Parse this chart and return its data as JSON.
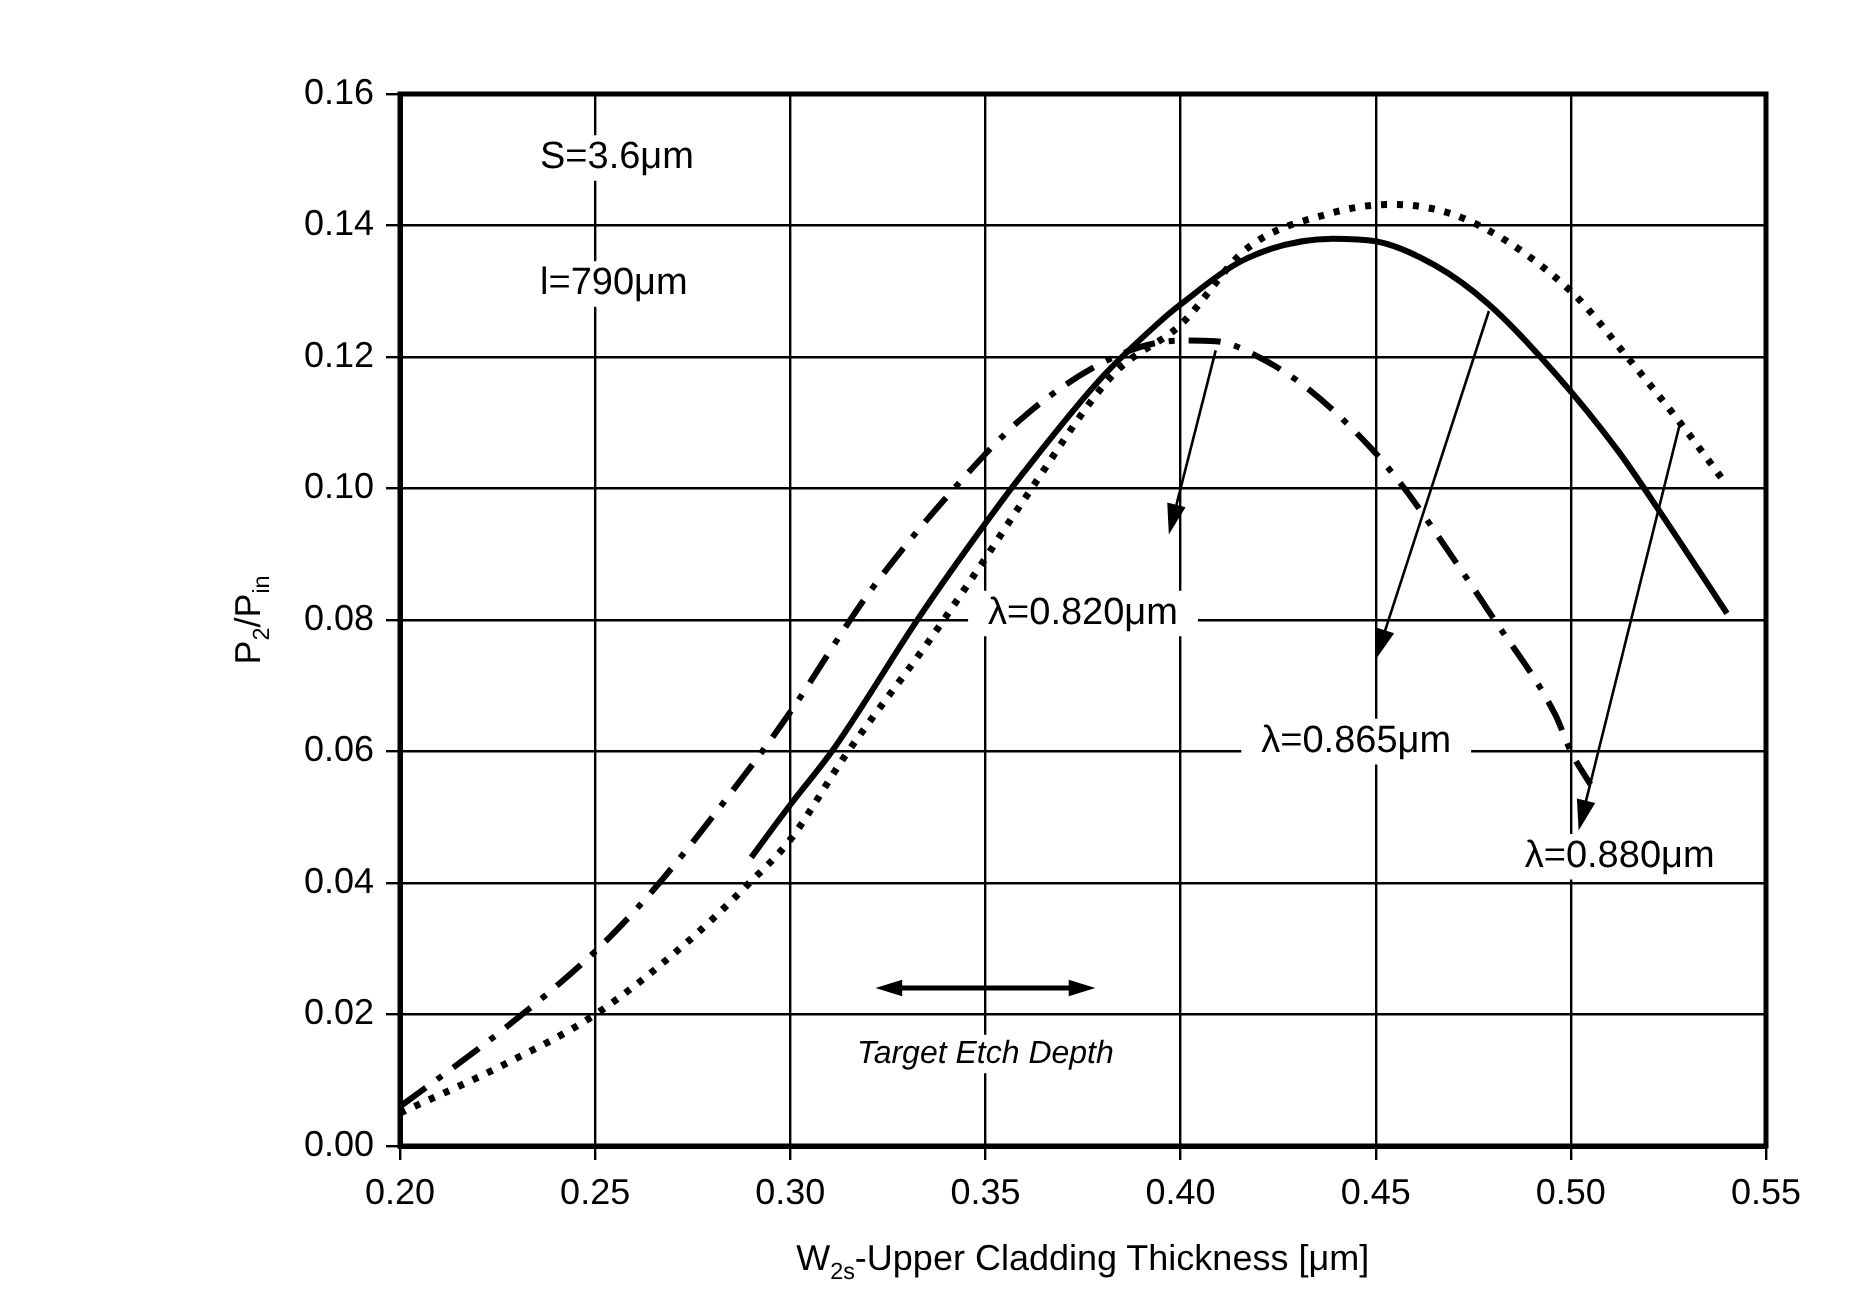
{
  "chart_data": {
    "type": "line",
    "xlabel": "W$_{2s}$-Upper Cladding Thickness [μm]",
    "ylabel": "P$_{2}$/P$_{in}$",
    "xlim": [
      0.2,
      0.55
    ],
    "xticks": [
      {
        "value": 0.2,
        "label": "0.20"
      },
      {
        "value": 0.25,
        "label": "0.25"
      },
      {
        "value": 0.3,
        "label": "0.30"
      },
      {
        "value": 0.35,
        "label": "0.35"
      },
      {
        "value": 0.4,
        "label": "0.40"
      },
      {
        "value": 0.45,
        "label": "0.45"
      },
      {
        "value": 0.5,
        "label": "0.50"
      },
      {
        "value": 0.55,
        "label": "0.55"
      }
    ],
    "ylim": [
      0,
      0.16
    ],
    "yticks": [
      {
        "value": 0,
        "label": "0.00"
      },
      {
        "value": 0.02,
        "label": "0.02"
      },
      {
        "value": 0.04,
        "label": "0.04"
      },
      {
        "value": 0.06,
        "label": "0.06"
      },
      {
        "value": 0.08,
        "label": "0.08"
      },
      {
        "value": 0.1,
        "label": "0.10"
      },
      {
        "value": 0.12,
        "label": "0.12"
      },
      {
        "value": 0.14,
        "label": "0.14"
      },
      {
        "value": 0.16,
        "label": "0.16"
      }
    ],
    "grid": true,
    "legend": false,
    "marker": "none",
    "annotations": [
      "S=3.6μm",
      "l=790μm",
      "Target Etch Depth",
      "λ=0.820μm",
      "λ=0.865μm",
      "λ=0.880μm"
    ],
    "series": [
      {
        "color": "#000000",
        "line_style": "dashed",
        "x": [
          0.2,
          0.226,
          0.25,
          0.265,
          0.289,
          0.3,
          0.32,
          0.342,
          0.36,
          0.383,
          0.4,
          0.409,
          0.42,
          0.433,
          0.449,
          0.458,
          0.468,
          0.48,
          0.496,
          0.5,
          0.505
        ],
        "values": [
          0.006,
          0.0175,
          0.0296,
          0.039,
          0.057,
          0.066,
          0.084,
          0.1,
          0.111,
          0.12,
          0.1225,
          0.1224,
          0.12,
          0.115,
          0.106,
          0.0995,
          0.091,
          0.0804,
          0.0656,
          0.06,
          0.055
        ]
      },
      {
        "color": "#000000",
        "line_style": "solid",
        "x": [
          0.29,
          0.3,
          0.311,
          0.333,
          0.35,
          0.36,
          0.38,
          0.394,
          0.4,
          0.417,
          0.439,
          0.45,
          0.465,
          0.479,
          0.496,
          0.512,
          0.523,
          0.54
        ],
        "values": [
          0.0439,
          0.0519,
          0.0603,
          0.0804,
          0.0947,
          0.1026,
          0.117,
          0.125,
          0.128,
          0.135,
          0.138,
          0.1376,
          0.134,
          0.128,
          0.1175,
          0.1058,
          0.0963,
          0.081
        ]
      },
      {
        "color": "#000000",
        "line_style": "dotted",
        "x": [
          0.2,
          0.226,
          0.25,
          0.273,
          0.289,
          0.3,
          0.314,
          0.336,
          0.35,
          0.36,
          0.383,
          0.4,
          0.417,
          0.438,
          0.454,
          0.474,
          0.5,
          0.515,
          0.528,
          0.54
        ],
        "values": [
          0.005,
          0.0122,
          0.02,
          0.0307,
          0.0397,
          0.0466,
          0.0593,
          0.0772,
          0.0894,
          0.0984,
          0.1175,
          0.1249,
          0.1365,
          0.1418,
          0.1432,
          0.1407,
          0.13,
          0.1196,
          0.11,
          0.1005
        ]
      }
    ]
  }
}
